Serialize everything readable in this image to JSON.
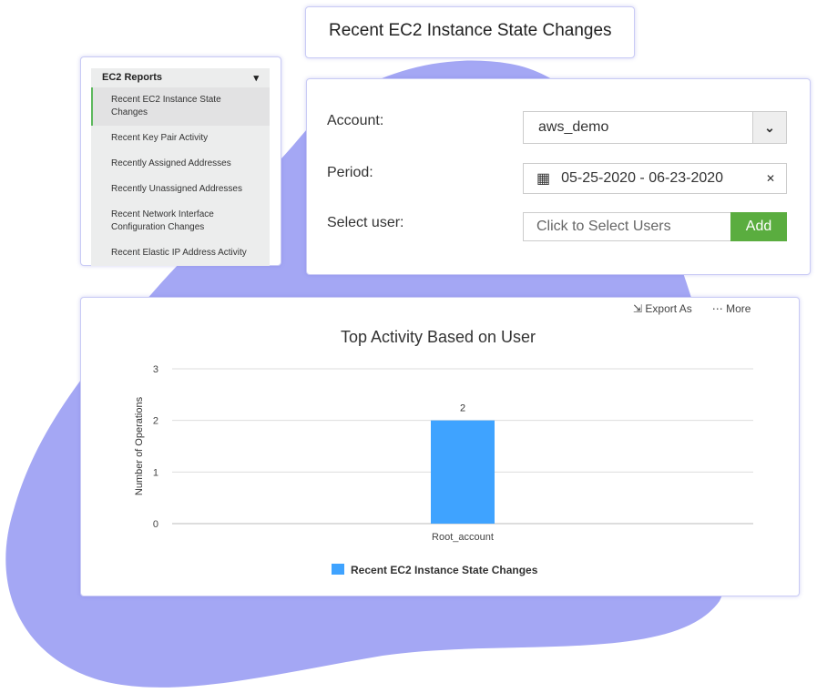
{
  "title": "Recent EC2 Instance State Changes",
  "sidebar": {
    "header": "EC2 Reports",
    "items": [
      {
        "label": "Recent EC2 Instance State Changes",
        "active": true
      },
      {
        "label": "Recent Key Pair Activity"
      },
      {
        "label": "Recently Assigned Addresses"
      },
      {
        "label": "Recently Unassigned Addresses"
      },
      {
        "label": "Recent Network Interface Configuration Changes"
      },
      {
        "label": "Recent Elastic IP Address Activity"
      }
    ]
  },
  "form": {
    "account_label": "Account:",
    "account_value": "aws_demo",
    "period_label": "Period:",
    "period_value": "05-25-2020 - 06-23-2020",
    "user_label": "Select user:",
    "user_placeholder": "Click to Select Users",
    "add_label": "Add"
  },
  "toolbar": {
    "export": "Export As",
    "more": "More"
  },
  "colors": {
    "blob": "#a4a7f4",
    "bar": "#3fa3ff",
    "add": "#5aad3f"
  },
  "chart_data": {
    "type": "bar",
    "title": "Top Activity Based on User",
    "ylabel": "Number of Operations",
    "xlabel": "",
    "categories": [
      "Root_account"
    ],
    "series": [
      {
        "name": "Recent EC2 Instance State Changes",
        "values": [
          2
        ]
      }
    ],
    "ylim": [
      0,
      3
    ],
    "yticks": [
      "0",
      "1",
      "2",
      "3"
    ],
    "data_labels": [
      "2"
    ],
    "grid": true,
    "legend": "bottom"
  }
}
